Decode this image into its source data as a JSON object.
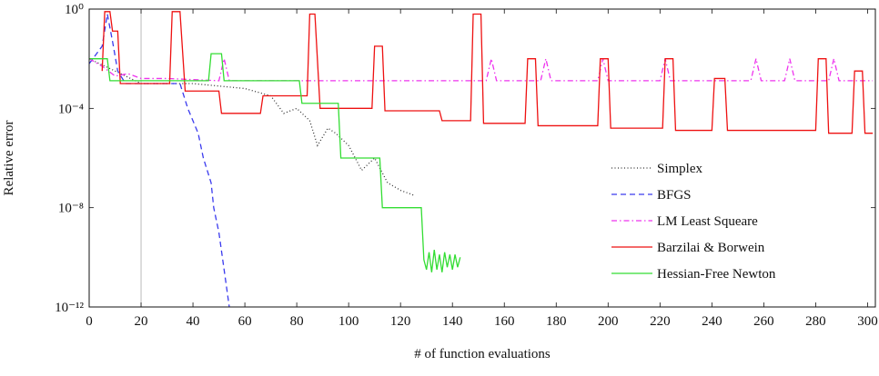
{
  "chart_data": {
    "type": "line",
    "xlabel": "# of function evaluations",
    "ylabel": "Relative error",
    "xlim": [
      0,
      303
    ],
    "ylim": [
      1e-12,
      1
    ],
    "ylog": true,
    "xticks": [
      0,
      20,
      40,
      60,
      80,
      100,
      120,
      140,
      160,
      180,
      200,
      220,
      240,
      260,
      280,
      300
    ],
    "yticks": [
      {
        "value": 1e-12,
        "label": "10⁻¹²"
      },
      {
        "value": 1e-08,
        "label": "10⁻⁸"
      },
      {
        "value": 0.0001,
        "label": "10⁻⁴"
      },
      {
        "value": 1,
        "label": "10⁰"
      }
    ],
    "vline": 20,
    "vline_color": "#bbbbbb",
    "legend": "lower right",
    "series": [
      {
        "name": "Simplex",
        "color": "#333333",
        "dash": "1,2.5",
        "x": [
          0,
          10,
          20,
          40,
          60,
          70,
          75,
          80,
          85,
          88,
          92,
          95,
          100,
          105,
          110,
          115,
          120,
          125
        ],
        "values": [
          0.01,
          0.0032,
          0.001,
          0.001,
          0.00063,
          0.00032,
          6.3e-05,
          0.0001,
          3.2e-05,
          3.2e-06,
          1.6e-05,
          1e-05,
          3.2e-06,
          3.2e-07,
          1e-06,
          1e-07,
          5e-08,
          3.2e-08
        ]
      },
      {
        "name": "BFGS",
        "color": "#3a3aee",
        "dash": "6,4",
        "x": [
          0,
          5,
          7,
          9,
          11,
          14,
          35,
          38,
          42,
          44,
          47,
          48,
          50,
          52,
          54
        ],
        "values": [
          0.0063,
          0.032,
          0.63,
          0.05,
          0.0032,
          0.001,
          0.001,
          0.0001,
          1e-05,
          1e-06,
          1e-07,
          1e-08,
          1e-09,
          3.2e-11,
          1e-12
        ]
      },
      {
        "name": "LM Least Squeare",
        "color": "#ee33ee",
        "dash": "6,3,1.5,3",
        "x": [
          0,
          5,
          10,
          15,
          20,
          30,
          50,
          52,
          54,
          153,
          155,
          157,
          174,
          176,
          178,
          196,
          198,
          200,
          220,
          222,
          224,
          255,
          257,
          259,
          268,
          270,
          272,
          285,
          287,
          289,
          302
        ],
        "values": [
          0.01,
          0.005,
          0.002,
          0.0025,
          0.0016,
          0.0016,
          0.0013,
          0.01,
          0.0013,
          0.0013,
          0.01,
          0.0013,
          0.0013,
          0.01,
          0.0013,
          0.0013,
          0.01,
          0.0013,
          0.0013,
          0.01,
          0.0013,
          0.0013,
          0.01,
          0.0013,
          0.0013,
          0.01,
          0.0013,
          0.0013,
          0.01,
          0.0013,
          0.0013
        ]
      },
      {
        "name": "Barzilai & Borwein",
        "color": "#ee1111",
        "dash": "",
        "x": [
          5,
          6,
          8,
          9,
          11,
          12,
          31,
          32,
          35,
          37,
          50,
          51,
          66,
          67,
          84,
          85,
          87,
          89,
          109,
          110,
          113,
          114,
          135,
          136,
          147,
          148,
          151,
          152,
          168,
          169,
          172,
          173,
          196,
          197,
          200,
          201,
          221,
          222,
          225,
          226,
          240,
          241,
          245,
          246,
          280,
          281,
          284,
          285,
          294,
          295,
          298,
          299,
          302
        ],
        "values": [
          0.0032,
          0.79,
          0.79,
          0.13,
          0.13,
          0.001,
          0.001,
          0.79,
          0.79,
          0.0005,
          0.0005,
          6.3e-05,
          6.3e-05,
          0.00032,
          0.00032,
          0.63,
          0.63,
          0.0001,
          0.0001,
          0.032,
          0.032,
          8e-05,
          8e-05,
          3.2e-05,
          3.2e-05,
          0.63,
          0.63,
          2.5e-05,
          2.5e-05,
          0.01,
          0.01,
          2e-05,
          2e-05,
          0.01,
          0.01,
          1.6e-05,
          1.6e-05,
          0.01,
          0.01,
          1.3e-05,
          1.3e-05,
          0.0016,
          0.0016,
          1.3e-05,
          1.3e-05,
          0.01,
          0.01,
          1e-05,
          1e-05,
          0.0032,
          0.0032,
          1e-05,
          1e-05
        ]
      },
      {
        "name": "Hessian-Free Newton",
        "color": "#33dd33",
        "dash": "",
        "x": [
          0,
          7,
          8,
          46,
          47,
          51,
          52,
          81,
          82,
          96,
          97,
          112,
          113,
          128,
          129,
          130,
          131,
          132,
          133,
          134,
          135,
          136,
          137,
          138,
          139,
          140,
          141,
          142,
          143
        ],
        "values": [
          0.01,
          0.01,
          0.0013,
          0.0013,
          0.016,
          0.016,
          0.0013,
          0.0013,
          0.00016,
          0.00016,
          1e-06,
          1e-06,
          1e-08,
          1e-08,
          8e-11,
          3.2e-11,
          1.6e-10,
          2.5e-11,
          2e-10,
          3.2e-11,
          1.3e-10,
          2.5e-11,
          1.6e-10,
          4e-11,
          1.3e-10,
          3.2e-11,
          1.3e-10,
          4e-11,
          1e-10
        ]
      }
    ]
  }
}
